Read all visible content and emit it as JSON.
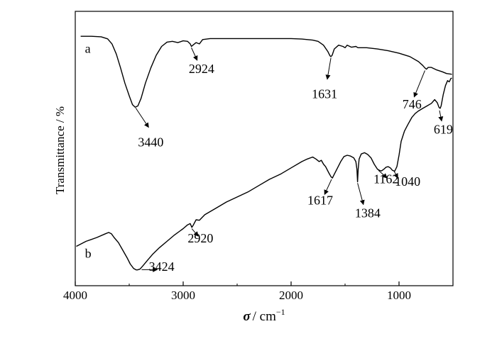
{
  "chart_data": {
    "type": "line",
    "title": "",
    "xlabel": {
      "symbol": "σ",
      "unit": "/ cm",
      "exponent": "−1"
    },
    "ylabel": "Transmittance / %",
    "xlim": [
      4000,
      500
    ],
    "x_reversed": true,
    "x_ticks": [
      4000,
      3000,
      2000,
      1000
    ],
    "x_tick_labels": [
      "4000",
      "3000",
      "2000",
      "1000"
    ],
    "y_ticks_shown": false,
    "grid": false,
    "legend": "none",
    "series": [
      {
        "curve_label": "a",
        "color": "#000000",
        "points": [
          [
            3950,
            0.935
          ],
          [
            3850,
            0.935
          ],
          [
            3760,
            0.933
          ],
          [
            3700,
            0.925
          ],
          [
            3660,
            0.905
          ],
          [
            3620,
            0.865
          ],
          [
            3580,
            0.81
          ],
          [
            3540,
            0.75
          ],
          [
            3500,
            0.7
          ],
          [
            3470,
            0.665
          ],
          [
            3445,
            0.655
          ],
          [
            3420,
            0.66
          ],
          [
            3390,
            0.69
          ],
          [
            3350,
            0.75
          ],
          [
            3300,
            0.81
          ],
          [
            3250,
            0.86
          ],
          [
            3200,
            0.895
          ],
          [
            3150,
            0.912
          ],
          [
            3100,
            0.915
          ],
          [
            3050,
            0.91
          ],
          [
            3000,
            0.917
          ],
          [
            2960,
            0.915
          ],
          [
            2935,
            0.905
          ],
          [
            2924,
            0.895
          ],
          [
            2910,
            0.9
          ],
          [
            2880,
            0.91
          ],
          [
            2850,
            0.905
          ],
          [
            2820,
            0.922
          ],
          [
            2750,
            0.926
          ],
          [
            2600,
            0.926
          ],
          [
            2400,
            0.926
          ],
          [
            2200,
            0.926
          ],
          [
            2000,
            0.926
          ],
          [
            1900,
            0.924
          ],
          [
            1800,
            0.92
          ],
          [
            1750,
            0.915
          ],
          [
            1700,
            0.9
          ],
          [
            1660,
            0.875
          ],
          [
            1640,
            0.858
          ],
          [
            1631,
            0.855
          ],
          [
            1620,
            0.86
          ],
          [
            1600,
            0.885
          ],
          [
            1560,
            0.9
          ],
          [
            1520,
            0.895
          ],
          [
            1500,
            0.89
          ],
          [
            1480,
            0.9
          ],
          [
            1440,
            0.892
          ],
          [
            1400,
            0.895
          ],
          [
            1380,
            0.89
          ],
          [
            1300,
            0.89
          ],
          [
            1200,
            0.885
          ],
          [
            1100,
            0.878
          ],
          [
            1000,
            0.868
          ],
          [
            900,
            0.855
          ],
          [
            820,
            0.835
          ],
          [
            780,
            0.82
          ],
          [
            760,
            0.81
          ],
          [
            746,
            0.805
          ],
          [
            730,
            0.812
          ],
          [
            700,
            0.812
          ],
          [
            650,
            0.802
          ],
          [
            600,
            0.795
          ],
          [
            560,
            0.788
          ],
          [
            510,
            0.785
          ]
        ]
      },
      {
        "curve_label": "b",
        "color": "#000000",
        "points": [
          [
            3990,
            0.105
          ],
          [
            3900,
            0.125
          ],
          [
            3800,
            0.14
          ],
          [
            3720,
            0.155
          ],
          [
            3690,
            0.16
          ],
          [
            3665,
            0.155
          ],
          [
            3640,
            0.14
          ],
          [
            3600,
            0.12
          ],
          [
            3560,
            0.09
          ],
          [
            3520,
            0.06
          ],
          [
            3490,
            0.035
          ],
          [
            3460,
            0.018
          ],
          [
            3435,
            0.012
          ],
          [
            3424,
            0.012
          ],
          [
            3400,
            0.015
          ],
          [
            3370,
            0.03
          ],
          [
            3330,
            0.05
          ],
          [
            3280,
            0.075
          ],
          [
            3220,
            0.1
          ],
          [
            3150,
            0.125
          ],
          [
            3080,
            0.15
          ],
          [
            3000,
            0.175
          ],
          [
            2960,
            0.19
          ],
          [
            2935,
            0.195
          ],
          [
            2920,
            0.18
          ],
          [
            2905,
            0.19
          ],
          [
            2880,
            0.21
          ],
          [
            2850,
            0.208
          ],
          [
            2800,
            0.23
          ],
          [
            2700,
            0.255
          ],
          [
            2600,
            0.28
          ],
          [
            2500,
            0.3
          ],
          [
            2400,
            0.32
          ],
          [
            2300,
            0.345
          ],
          [
            2200,
            0.37
          ],
          [
            2100,
            0.39
          ],
          [
            2000,
            0.415
          ],
          [
            1900,
            0.44
          ],
          [
            1850,
            0.45
          ],
          [
            1800,
            0.458
          ],
          [
            1770,
            0.45
          ],
          [
            1740,
            0.44
          ],
          [
            1720,
            0.445
          ],
          [
            1700,
            0.43
          ],
          [
            1680,
            0.42
          ],
          [
            1650,
            0.395
          ],
          [
            1630,
            0.38
          ],
          [
            1617,
            0.375
          ],
          [
            1600,
            0.39
          ],
          [
            1570,
            0.415
          ],
          [
            1540,
            0.44
          ],
          [
            1510,
            0.46
          ],
          [
            1480,
            0.465
          ],
          [
            1450,
            0.462
          ],
          [
            1420,
            0.455
          ],
          [
            1400,
            0.44
          ],
          [
            1390,
            0.41
          ],
          [
            1384,
            0.36
          ],
          [
            1378,
            0.41
          ],
          [
            1370,
            0.45
          ],
          [
            1350,
            0.47
          ],
          [
            1320,
            0.475
          ],
          [
            1290,
            0.468
          ],
          [
            1260,
            0.455
          ],
          [
            1230,
            0.43
          ],
          [
            1200,
            0.41
          ],
          [
            1180,
            0.405
          ],
          [
            1162,
            0.403
          ],
          [
            1140,
            0.41
          ],
          [
            1120,
            0.418
          ],
          [
            1100,
            0.42
          ],
          [
            1080,
            0.415
          ],
          [
            1060,
            0.405
          ],
          [
            1040,
            0.402
          ],
          [
            1020,
            0.42
          ],
          [
            1000,
            0.465
          ],
          [
            980,
            0.52
          ],
          [
            950,
            0.56
          ],
          [
            920,
            0.585
          ],
          [
            880,
            0.615
          ],
          [
            850,
            0.63
          ],
          [
            820,
            0.64
          ],
          [
            780,
            0.65
          ],
          [
            740,
            0.66
          ],
          [
            700,
            0.67
          ],
          [
            670,
            0.685
          ],
          [
            645,
            0.672
          ],
          [
            630,
            0.655
          ],
          [
            619,
            0.65
          ],
          [
            610,
            0.66
          ],
          [
            590,
            0.705
          ],
          [
            570,
            0.74
          ],
          [
            550,
            0.76
          ],
          [
            535,
            0.755
          ],
          [
            520,
            0.768
          ],
          [
            510,
            0.77
          ]
        ]
      }
    ],
    "curve_label_positions": [
      {
        "text": "a",
        "x": 3910,
        "y": 0.87
      },
      {
        "text": "b",
        "x": 3910,
        "y": 0.06
      }
    ],
    "annotations": [
      {
        "text": "3440",
        "peak": [
          3440,
          0.652
        ],
        "label_at": [
          3300,
          0.5
        ],
        "arrow_end": [
          3320,
          0.575
        ]
      },
      {
        "text": "2924",
        "peak": [
          2924,
          0.89
        ],
        "label_at": [
          2830,
          0.79
        ],
        "arrow_end": [
          2870,
          0.84
        ]
      },
      {
        "text": "1631",
        "peak": [
          1631,
          0.85
        ],
        "label_at": [
          1690,
          0.69
        ],
        "arrow_end": [
          1665,
          0.765
        ]
      },
      {
        "text": "746",
        "peak": [
          760,
          0.8
        ],
        "label_at": [
          880,
          0.65
        ],
        "arrow_end": [
          860,
          0.695
        ]
      },
      {
        "text": "619",
        "peak": [
          625,
          0.642
        ],
        "label_at": [
          590,
          0.55
        ],
        "arrow_end": [
          605,
          0.6
        ]
      },
      {
        "text": "1162",
        "peak": [
          1190,
          0.405
        ],
        "label_at": [
          1120,
          0.355
        ],
        "arrow_end": [
          1110,
          0.375
        ]
      },
      {
        "text": "1040",
        "peak": [
          1050,
          0.405
        ],
        "label_at": [
          920,
          0.345
        ],
        "arrow_end": [
          1010,
          0.375
        ]
      },
      {
        "text": "1617",
        "peak": [
          1625,
          0.37
        ],
        "label_at": [
          1730,
          0.27
        ],
        "arrow_end": [
          1690,
          0.31
        ]
      },
      {
        "text": "1384",
        "peak": [
          1384,
          0.355
        ],
        "label_at": [
          1290,
          0.22
        ],
        "arrow_end": [
          1330,
          0.27
        ]
      },
      {
        "text": "2920",
        "peak": [
          2920,
          0.175
        ],
        "label_at": [
          2840,
          0.12
        ],
        "arrow_end": [
          2860,
          0.145
        ]
      },
      {
        "text": "3424",
        "peak": [
          3385,
          0.013
        ],
        "label_at": [
          3200,
          0.008
        ],
        "arrow_end": [
          3240,
          0.013
        ]
      }
    ]
  }
}
